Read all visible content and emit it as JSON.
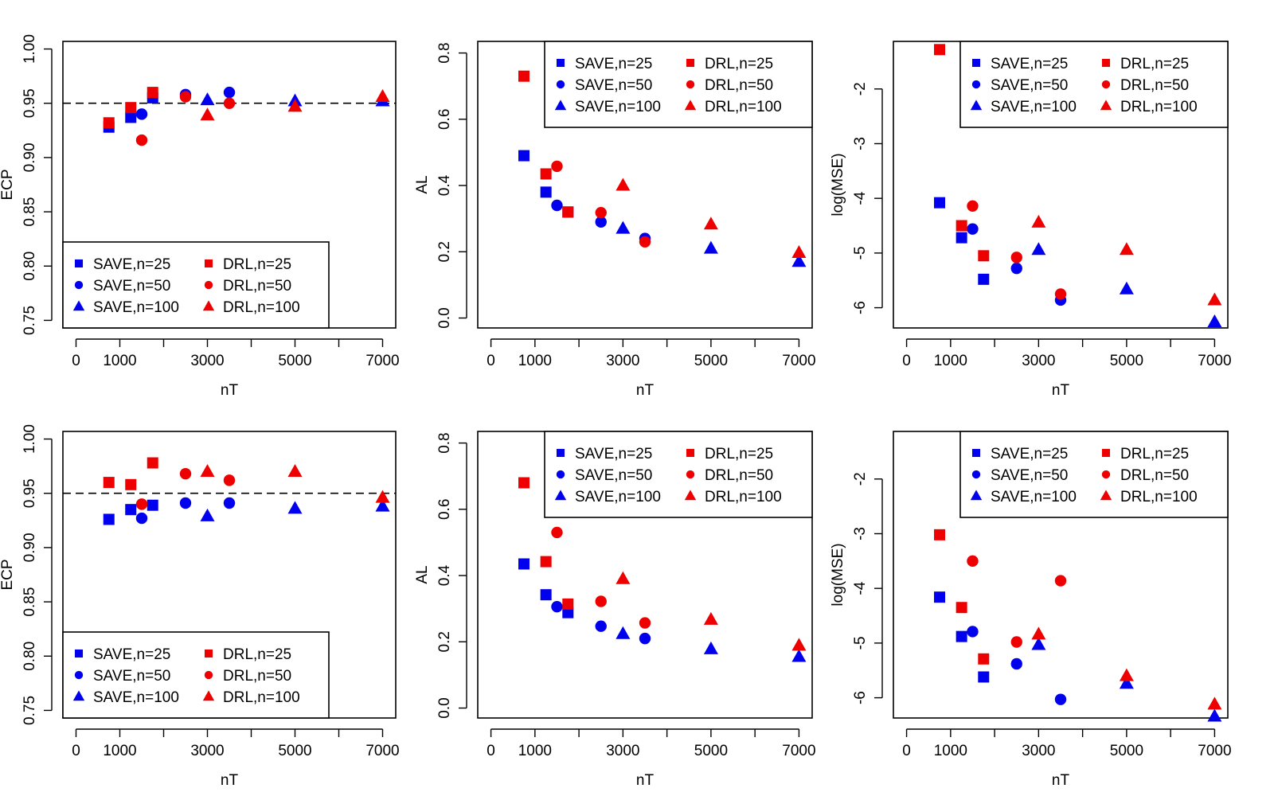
{
  "colors": {
    "save": "#0000ee",
    "drl": "#ee0000",
    "reference_line": "#000000"
  },
  "legend_labels": [
    {
      "method": "SAVE",
      "n": "25",
      "text": "SAVE,n=25",
      "shape": "square"
    },
    {
      "method": "SAVE",
      "n": "50",
      "text": "SAVE,n=50",
      "shape": "circle"
    },
    {
      "method": "SAVE",
      "n": "100",
      "text": "SAVE,n=100",
      "shape": "triangle"
    },
    {
      "method": "DRL",
      "n": "25",
      "text": "DRL,n=25",
      "shape": "square"
    },
    {
      "method": "DRL",
      "n": "50",
      "text": "DRL,n=50",
      "shape": "circle"
    },
    {
      "method": "DRL",
      "n": "100",
      "text": "DRL,n=100",
      "shape": "triangle"
    }
  ],
  "chart_data": [
    {
      "type": "scatter",
      "panel": "top-left",
      "xlabel": "nT",
      "ylabel": "ECP",
      "xlim": [
        -300,
        7300
      ],
      "ylim": [
        0.743,
        1.007
      ],
      "xticks": [
        0,
        1000,
        2000,
        3000,
        4000,
        5000,
        6000,
        7000
      ],
      "xtick_labels": [
        "0",
        "1000",
        "",
        "3000",
        "",
        "5000",
        "",
        "7000"
      ],
      "yticks": [
        0.75,
        0.8,
        0.85,
        0.9,
        0.95,
        1.0
      ],
      "ytick_labels": [
        "0.75",
        "0.80",
        "0.85",
        "0.90",
        "0.95",
        "1.00"
      ],
      "hline": 0.95,
      "legend_position": "bottom-left",
      "series": [
        {
          "name": "SAVE,n=25",
          "method": "SAVE",
          "shape": "square",
          "x": [
            750,
            1250,
            1750
          ],
          "y": [
            0.928,
            0.937,
            0.955
          ]
        },
        {
          "name": "SAVE,n=50",
          "method": "SAVE",
          "shape": "circle",
          "x": [
            1500,
            2500,
            3500
          ],
          "y": [
            0.94,
            0.958,
            0.96
          ]
        },
        {
          "name": "SAVE,n=100",
          "method": "SAVE",
          "shape": "triangle",
          "x": [
            3000,
            5000,
            7000
          ],
          "y": [
            0.953,
            0.952,
            0.952
          ]
        },
        {
          "name": "DRL,n=25",
          "method": "DRL",
          "shape": "square",
          "x": [
            750,
            1250,
            1750
          ],
          "y": [
            0.932,
            0.946,
            0.96
          ]
        },
        {
          "name": "DRL,n=50",
          "method": "DRL",
          "shape": "circle",
          "x": [
            1500,
            2500,
            3500
          ],
          "y": [
            0.916,
            0.956,
            0.95
          ]
        },
        {
          "name": "DRL,n=100",
          "method": "DRL",
          "shape": "triangle",
          "x": [
            3000,
            5000,
            7000
          ],
          "y": [
            0.939,
            0.947,
            0.956
          ]
        }
      ]
    },
    {
      "type": "scatter",
      "panel": "top-middle",
      "xlabel": "nT",
      "ylabel": "AL",
      "xlim": [
        -300,
        7300
      ],
      "ylim": [
        -0.03,
        0.835
      ],
      "xticks": [
        0,
        1000,
        2000,
        3000,
        4000,
        5000,
        6000,
        7000
      ],
      "xtick_labels": [
        "0",
        "1000",
        "",
        "3000",
        "",
        "5000",
        "",
        "7000"
      ],
      "yticks": [
        0.0,
        0.2,
        0.4,
        0.6,
        0.8
      ],
      "ytick_labels": [
        "0.0",
        "0.2",
        "0.4",
        "0.6",
        "0.8"
      ],
      "legend_position": "top-right",
      "series": [
        {
          "name": "SAVE,n=25",
          "method": "SAVE",
          "shape": "square",
          "x": [
            750,
            1250,
            1750
          ],
          "y": [
            0.49,
            0.38,
            0.32
          ]
        },
        {
          "name": "SAVE,n=50",
          "method": "SAVE",
          "shape": "circle",
          "x": [
            1500,
            2500,
            3500
          ],
          "y": [
            0.34,
            0.29,
            0.24
          ]
        },
        {
          "name": "SAVE,n=100",
          "method": "SAVE",
          "shape": "triangle",
          "x": [
            3000,
            5000,
            7000
          ],
          "y": [
            0.27,
            0.21,
            0.17
          ]
        },
        {
          "name": "DRL,n=25",
          "method": "DRL",
          "shape": "square",
          "x": [
            750,
            1250,
            1750
          ],
          "y": [
            0.73,
            0.435,
            0.32
          ]
        },
        {
          "name": "DRL,n=50",
          "method": "DRL",
          "shape": "circle",
          "x": [
            1500,
            2500,
            3500
          ],
          "y": [
            0.458,
            0.318,
            0.23
          ]
        },
        {
          "name": "DRL,n=100",
          "method": "DRL",
          "shape": "triangle",
          "x": [
            3000,
            5000,
            7000
          ],
          "y": [
            0.4,
            0.283,
            0.197
          ]
        }
      ]
    },
    {
      "type": "scatter",
      "panel": "top-right",
      "xlabel": "nT",
      "ylabel": "log(MSE)",
      "xlim": [
        -300,
        7300
      ],
      "ylim": [
        -6.37,
        -1.13
      ],
      "xticks": [
        0,
        1000,
        2000,
        3000,
        4000,
        5000,
        6000,
        7000
      ],
      "xtick_labels": [
        "0",
        "1000",
        "",
        "3000",
        "",
        "5000",
        "",
        "7000"
      ],
      "yticks": [
        -6,
        -5,
        -4,
        -3,
        -2
      ],
      "ytick_labels": [
        "-6",
        "-5",
        "-4",
        "-3",
        "-2"
      ],
      "legend_position": "top-right",
      "series": [
        {
          "name": "SAVE,n=25",
          "method": "SAVE",
          "shape": "square",
          "x": [
            750,
            1250,
            1750
          ],
          "y": [
            -4.08,
            -4.72,
            -5.48
          ]
        },
        {
          "name": "SAVE,n=50",
          "method": "SAVE",
          "shape": "circle",
          "x": [
            1500,
            2500,
            3500
          ],
          "y": [
            -4.56,
            -5.28,
            -5.86
          ]
        },
        {
          "name": "SAVE,n=100",
          "method": "SAVE",
          "shape": "triangle",
          "x": [
            3000,
            5000,
            7000
          ],
          "y": [
            -4.94,
            -5.66,
            -6.26
          ]
        },
        {
          "name": "DRL,n=25",
          "method": "DRL",
          "shape": "square",
          "x": [
            750,
            1250,
            1750
          ],
          "y": [
            -1.28,
            -4.5,
            -5.05
          ]
        },
        {
          "name": "DRL,n=50",
          "method": "DRL",
          "shape": "circle",
          "x": [
            1500,
            2500,
            3500
          ],
          "y": [
            -4.14,
            -5.08,
            -5.75
          ]
        },
        {
          "name": "DRL,n=100",
          "method": "DRL",
          "shape": "triangle",
          "x": [
            3000,
            5000,
            7000
          ],
          "y": [
            -4.44,
            -4.94,
            -5.86
          ]
        }
      ]
    },
    {
      "type": "scatter",
      "panel": "bottom-left",
      "xlabel": "nT",
      "ylabel": "ECP",
      "xlim": [
        -300,
        7300
      ],
      "ylim": [
        0.743,
        1.007
      ],
      "xticks": [
        0,
        1000,
        2000,
        3000,
        4000,
        5000,
        6000,
        7000
      ],
      "xtick_labels": [
        "0",
        "1000",
        "",
        "3000",
        "",
        "5000",
        "",
        "7000"
      ],
      "yticks": [
        0.75,
        0.8,
        0.85,
        0.9,
        0.95,
        1.0
      ],
      "ytick_labels": [
        "0.75",
        "0.80",
        "0.85",
        "0.90",
        "0.95",
        "1.00"
      ],
      "hline": 0.95,
      "legend_position": "bottom-left",
      "series": [
        {
          "name": "SAVE,n=25",
          "method": "SAVE",
          "shape": "square",
          "x": [
            750,
            1250,
            1750
          ],
          "y": [
            0.926,
            0.935,
            0.939
          ]
        },
        {
          "name": "SAVE,n=50",
          "method": "SAVE",
          "shape": "circle",
          "x": [
            1500,
            2500,
            3500
          ],
          "y": [
            0.927,
            0.941,
            0.941
          ]
        },
        {
          "name": "SAVE,n=100",
          "method": "SAVE",
          "shape": "triangle",
          "x": [
            3000,
            5000,
            7000
          ],
          "y": [
            0.929,
            0.936,
            0.938
          ]
        },
        {
          "name": "DRL,n=25",
          "method": "DRL",
          "shape": "square",
          "x": [
            750,
            1250,
            1750
          ],
          "y": [
            0.96,
            0.958,
            0.978
          ]
        },
        {
          "name": "DRL,n=50",
          "method": "DRL",
          "shape": "circle",
          "x": [
            1500,
            2500,
            3500
          ],
          "y": [
            0.94,
            0.968,
            0.962
          ]
        },
        {
          "name": "DRL,n=100",
          "method": "DRL",
          "shape": "triangle",
          "x": [
            3000,
            5000,
            7000
          ],
          "y": [
            0.97,
            0.97,
            0.946
          ]
        }
      ]
    },
    {
      "type": "scatter",
      "panel": "bottom-middle",
      "xlabel": "nT",
      "ylabel": "AL",
      "xlim": [
        -300,
        7300
      ],
      "ylim": [
        -0.03,
        0.835
      ],
      "xticks": [
        0,
        1000,
        2000,
        3000,
        4000,
        5000,
        6000,
        7000
      ],
      "xtick_labels": [
        "0",
        "1000",
        "",
        "3000",
        "",
        "5000",
        "",
        "7000"
      ],
      "yticks": [
        0.0,
        0.2,
        0.4,
        0.6,
        0.8
      ],
      "ytick_labels": [
        "0.0",
        "0.2",
        "0.4",
        "0.6",
        "0.8"
      ],
      "legend_position": "top-right",
      "series": [
        {
          "name": "SAVE,n=25",
          "method": "SAVE",
          "shape": "square",
          "x": [
            750,
            1250,
            1750
          ],
          "y": [
            0.435,
            0.342,
            0.288
          ]
        },
        {
          "name": "SAVE,n=50",
          "method": "SAVE",
          "shape": "circle",
          "x": [
            1500,
            2500,
            3500
          ],
          "y": [
            0.306,
            0.247,
            0.21
          ]
        },
        {
          "name": "SAVE,n=100",
          "method": "SAVE",
          "shape": "triangle",
          "x": [
            3000,
            5000,
            7000
          ],
          "y": [
            0.224,
            0.178,
            0.155
          ]
        },
        {
          "name": "DRL,n=25",
          "method": "DRL",
          "shape": "square",
          "x": [
            750,
            1250,
            1750
          ],
          "y": [
            0.68,
            0.442,
            0.314
          ]
        },
        {
          "name": "DRL,n=50",
          "method": "DRL",
          "shape": "circle",
          "x": [
            1500,
            2500,
            3500
          ],
          "y": [
            0.53,
            0.322,
            0.257
          ]
        },
        {
          "name": "DRL,n=100",
          "method": "DRL",
          "shape": "triangle",
          "x": [
            3000,
            5000,
            7000
          ],
          "y": [
            0.39,
            0.267,
            0.189
          ]
        }
      ]
    },
    {
      "type": "scatter",
      "panel": "bottom-right",
      "xlabel": "nT",
      "ylabel": "log(MSE)",
      "xlim": [
        -300,
        7300
      ],
      "ylim": [
        -6.37,
        -1.13
      ],
      "xticks": [
        0,
        1000,
        2000,
        3000,
        4000,
        5000,
        6000,
        7000
      ],
      "xtick_labels": [
        "0",
        "1000",
        "",
        "3000",
        "",
        "5000",
        "",
        "7000"
      ],
      "yticks": [
        -6,
        -5,
        -4,
        -3,
        -2
      ],
      "ytick_labels": [
        "-6",
        "-5",
        "-4",
        "-3",
        "-2"
      ],
      "legend_position": "top-right",
      "series": [
        {
          "name": "SAVE,n=25",
          "method": "SAVE",
          "shape": "square",
          "x": [
            750,
            1250,
            1750
          ],
          "y": [
            -4.16,
            -4.88,
            -5.62
          ]
        },
        {
          "name": "SAVE,n=50",
          "method": "SAVE",
          "shape": "circle",
          "x": [
            1500,
            2500,
            3500
          ],
          "y": [
            -4.79,
            -5.38,
            -6.03
          ]
        },
        {
          "name": "SAVE,n=100",
          "method": "SAVE",
          "shape": "triangle",
          "x": [
            3000,
            5000,
            7000
          ],
          "y": [
            -5.03,
            -5.74,
            -6.34
          ]
        },
        {
          "name": "DRL,n=25",
          "method": "DRL",
          "shape": "square",
          "x": [
            750,
            1250,
            1750
          ],
          "y": [
            -3.02,
            -4.35,
            -5.29
          ]
        },
        {
          "name": "DRL,n=50",
          "method": "DRL",
          "shape": "circle",
          "x": [
            1500,
            2500,
            3500
          ],
          "y": [
            -3.5,
            -4.98,
            -3.86
          ]
        },
        {
          "name": "DRL,n=100",
          "method": "DRL",
          "shape": "triangle",
          "x": [
            3000,
            5000,
            7000
          ],
          "y": [
            -4.84,
            -5.6,
            -6.12
          ]
        }
      ]
    }
  ]
}
